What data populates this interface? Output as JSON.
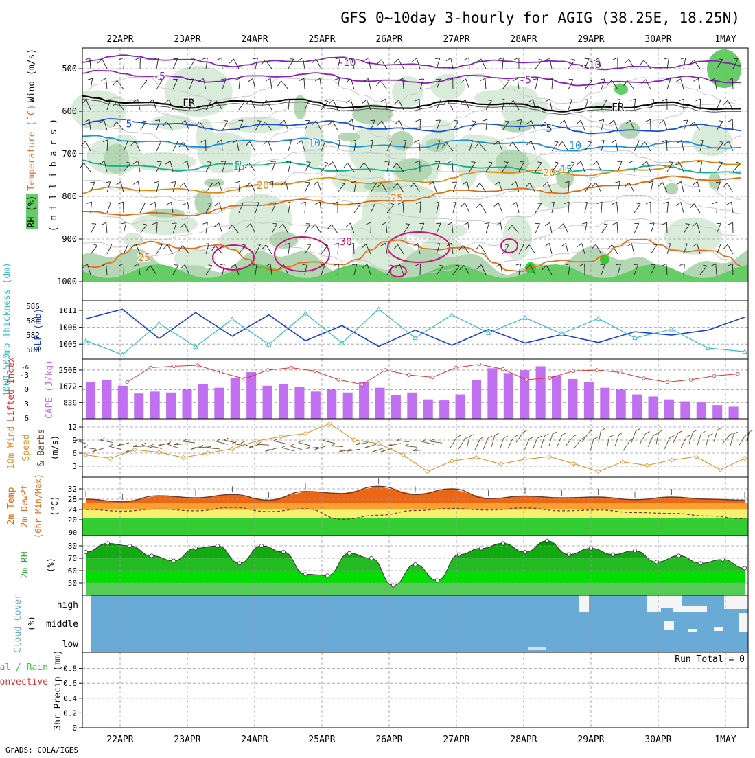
{
  "title": "GFS 0~10day 3-hourly for AGIG (38.25E, 18.25N)",
  "credit": "GrADS: COLA/IGES",
  "dates": [
    "22APR",
    "23APR",
    "24APR",
    "25APR",
    "26APR",
    "27APR",
    "28APR",
    "29APR",
    "30APR",
    "1MAY"
  ],
  "colors": {
    "rh_light": "#d9ecd9",
    "rh_mid": "#b3d6b3",
    "rh_dark": "#66cc66",
    "rh_green": "#33cc33",
    "wind_contour": "#c8c8c8",
    "slp": "#1a3fd1",
    "thick": "#33bbcc",
    "lifted": "#dd3333",
    "cape": "#c070f0",
    "wspd": "#e0902a",
    "barb": "#6b4a2a",
    "temp_hot": "#ee6611",
    "temp_warm": "#f8a030",
    "temp_mild": "#f6f070",
    "dew_band": "#33cc33",
    "rh2m_1": "#55cc55",
    "rh2m_2": "#22bb22",
    "rh2m_3": "#11aa11",
    "rh2m_4": "#009900",
    "cloud": "#6aaad6"
  },
  "panel1": {
    "ylabels": [
      {
        "text": "Wind (m/s)",
        "color": "#000000"
      },
      {
        "text": "Temperature (°C)",
        "color": "#e0703a"
      },
      {
        "text": "RH (%)",
        "color": "#000000"
      },
      {
        "text": "( m i l l i b a r s )",
        "color": "#000000"
      }
    ],
    "yticks": [
      "500",
      "600",
      "700",
      "800",
      "900",
      "1000"
    ],
    "isotherm_labels": [
      "-10",
      "-5",
      "FR",
      "5",
      "10",
      "15",
      "20",
      "25",
      "30",
      "25"
    ]
  },
  "panel2": {
    "ylabel_left": "1000-500mb Thickness (dm)",
    "ylabel_right": "SLP (mb)",
    "left_ticks": [
      "586",
      "584",
      "582",
      "580"
    ],
    "right_ticks": [
      "1011",
      "1008",
      "1005"
    ]
  },
  "panel3": {
    "ylabel_left": "Lifted Index",
    "ylabel_right": "CAPE (J/kg)",
    "left_ticks": [
      "-3",
      "0",
      "3",
      "6"
    ],
    "left_ticks_top": "-6",
    "right_ticks": [
      "2508",
      "1672",
      "836"
    ]
  },
  "panel4": {
    "ylabel1": "10m Wind",
    "ylabel2": "Speed",
    "ylabel3": "& Barbs",
    "units": "(m/s)",
    "ticks": [
      "12",
      "9",
      "6",
      "3"
    ]
  },
  "panel5": {
    "ylabel1": "2m Temp",
    "ylabel2": "2m DewPt",
    "ylabel3": "(6hr Min/Max)",
    "units": "(°C)",
    "ticks": [
      "32",
      "28",
      "24",
      "20",
      "90"
    ]
  },
  "panel6": {
    "ylabel": "2m RH",
    "units": "(%)",
    "ticks": [
      "80",
      "70",
      "60",
      "50"
    ]
  },
  "panel7": {
    "ylabel": "Cloud Cover",
    "units": "(%)",
    "levels": [
      "high",
      "middle",
      "low"
    ]
  },
  "panel8": {
    "ylabel1": "Total / Rain",
    "ylabel2": "Convective",
    "ylabel3": "3hr Precip (mm)",
    "ticks": [
      "0.8",
      "0.6",
      "0.4",
      "0.2",
      "0"
    ],
    "run_total": "Run Total = 0"
  },
  "chart_data": [
    {
      "type": "line",
      "title": "SLP (mb)",
      "x": [
        "22APR 00",
        "22APR 12",
        "23APR 00",
        "23APR 12",
        "24APR 00",
        "24APR 12",
        "25APR 00",
        "25APR 12",
        "26APR 00",
        "26APR 12",
        "27APR 00",
        "27APR 12",
        "28APR 00",
        "28APR 12",
        "29APR 00",
        "29APR 12",
        "30APR 00",
        "30APR 12",
        "1MAY 00"
      ],
      "series": [
        {
          "name": "SLP (mb)",
          "values": [
            1009.5,
            1011.2,
            1006.0,
            1010.6,
            1006.4,
            1010.2,
            1005.6,
            1008.3,
            1004.6,
            1007.5,
            1004.8,
            1007.6,
            1005.2,
            1006.7,
            1005.3,
            1007.2,
            1006.6,
            1007.5,
            1009.8
          ]
        },
        {
          "name": "1000-500mb Thickness (dm)",
          "values": [
            581.2,
            579.3,
            583.6,
            580.4,
            584.2,
            580.7,
            585.0,
            580.9,
            585.6,
            581.6,
            584.8,
            582.3,
            584.4,
            582.2,
            584.3,
            581.6,
            582.8,
            580.2,
            579.7
          ]
        }
      ]
    },
    {
      "type": "bar",
      "title": "CAPE (J/kg)",
      "values": [
        1900,
        2000,
        1700,
        1300,
        1400,
        1350,
        1500,
        1800,
        1600,
        2100,
        2400,
        1700,
        1800,
        1650,
        1400,
        1500,
        1350,
        1900,
        1600,
        1200,
        1350,
        1000,
        950,
        1250,
        2000,
        2600,
        2350,
        2500,
        2700,
        2200,
        2050,
        1900,
        1600,
        1500,
        1250,
        1150,
        1000,
        900,
        850,
        700,
        620
      ],
      "lifted_index": [
        -1.5,
        -4.5,
        -4.8,
        -5.0,
        -3.5,
        -2.2,
        -4.0,
        -4.5,
        -3.8,
        -2.0,
        -1.0,
        -4.0,
        -3.0,
        -2.5,
        -4.5,
        -5.2,
        -4.2,
        -2.0,
        -2.4,
        -3.8,
        -4.0,
        -3.5,
        -2.3,
        -1.5,
        -2.0,
        -2.8,
        -3.2
      ]
    },
    {
      "type": "line",
      "title": "10m Wind Speed (m/s)",
      "ylim": [
        0,
        14
      ],
      "values": [
        5.6,
        4.8,
        6.8,
        6.2,
        5.0,
        6.0,
        7.0,
        8.8,
        9.8,
        10.5,
        12.8,
        9.0,
        8.2,
        5.6,
        1.8,
        4.2,
        5.0,
        3.5,
        4.6,
        5.2,
        3.6,
        1.8,
        4.0,
        3.2,
        4.4,
        5.2,
        2.2,
        4.8
      ]
    },
    {
      "type": "area",
      "title": "2m Temp / DewPt (°C)",
      "temp": [
        28.0,
        27.0,
        29.3,
        28.5,
        29.8,
        27.6,
        31.0,
        30.2,
        33.0,
        29.8,
        32.0,
        28.2,
        29.2,
        28.5,
        28.8,
        27.8,
        28.8,
        28.0,
        27.6
      ],
      "dewpoint": [
        24.0,
        23.4,
        24.2,
        23.5,
        24.8,
        23.2,
        24.3,
        20.2,
        21.8,
        23.6,
        24.4,
        23.8,
        24.6,
        23.5,
        23.8,
        22.8,
        22.5,
        21.5,
        20.4
      ]
    },
    {
      "type": "area",
      "title": "2m RH (%)",
      "ylim": [
        40,
        87
      ],
      "values": [
        75,
        82,
        80,
        72,
        68,
        78,
        80,
        66,
        80,
        75,
        57,
        56,
        74,
        70,
        48,
        65,
        52,
        73,
        78,
        82,
        75,
        84,
        73,
        78,
        73,
        76,
        67,
        72,
        66,
        69,
        62
      ]
    },
    {
      "type": "heatmap",
      "title": "Cloud Cover (%)",
      "levels": [
        "high",
        "middle",
        "low"
      ]
    },
    {
      "type": "bar",
      "title": "3hr Precip (mm)",
      "ylim": [
        0,
        0.9
      ],
      "values": []
    }
  ]
}
